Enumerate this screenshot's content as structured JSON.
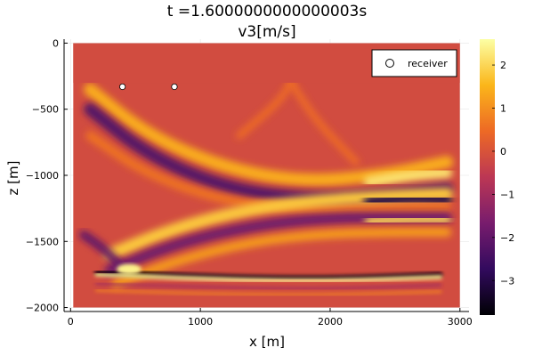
{
  "chart_data": {
    "type": "heatmap",
    "title": "t =1.6000000000000003s",
    "subtitle": "v3[m/s]",
    "xlabel": "x [m]",
    "ylabel": "z [m]",
    "xlim": [
      -50,
      3070
    ],
    "ylim": [
      -2030,
      30
    ],
    "domain_x": [
      20,
      3000
    ],
    "domain_z": [
      -2000,
      0
    ],
    "x_ticks": [
      {
        "value": 0,
        "label": "0"
      },
      {
        "value": 1000,
        "label": "1000"
      },
      {
        "value": 2000,
        "label": "2000"
      },
      {
        "value": 3000,
        "label": "3000"
      }
    ],
    "z_ticks": [
      {
        "value": 0,
        "label": "0"
      },
      {
        "value": -500,
        "label": "−500"
      },
      {
        "value": -1000,
        "label": "−1000"
      },
      {
        "value": -1500,
        "label": "−1500"
      },
      {
        "value": -2000,
        "label": "−2000"
      }
    ],
    "colorbar": {
      "range": [
        -3.8,
        2.6
      ],
      "ticks": [
        {
          "value": 2,
          "label": "2"
        },
        {
          "value": 1,
          "label": "1"
        },
        {
          "value": 0,
          "label": "0"
        },
        {
          "value": -1,
          "label": "−1"
        },
        {
          "value": -2,
          "label": "−2"
        },
        {
          "value": -3,
          "label": "−3"
        }
      ],
      "colormap": "inferno",
      "stops": [
        "#000004",
        "#320a5e",
        "#781c6d",
        "#bc3754",
        "#ed6925",
        "#fbb61a",
        "#fcffa4"
      ]
    },
    "grid": true,
    "legend": {
      "position": "top-right",
      "entries": [
        {
          "label": "receiver",
          "marker": "circle",
          "color": "#ffffff"
        }
      ]
    },
    "series": [
      {
        "type": "scatter",
        "x": [
          400,
          800
        ],
        "y": [
          -330,
          -330
        ]
      }
    ],
    "background_value": -0.15
  }
}
